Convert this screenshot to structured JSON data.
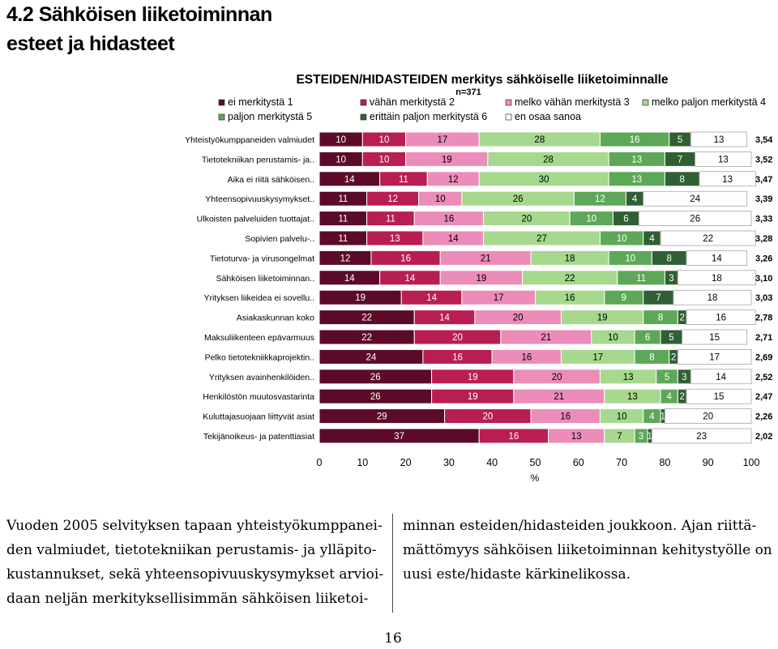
{
  "section_heading": {
    "line1": "4.2 Sähköisen liiketoiminnan",
    "line2": "esteet ja hidasteet"
  },
  "chart_data": {
    "type": "bar",
    "stacked": true,
    "orientation": "horizontal",
    "title": "ESTEIDEN/HIDASTEIDEN merkitys sähköiselle liiketoiminnalle",
    "subtitle": "n=371",
    "xlabel": "%",
    "xlim": [
      0,
      100
    ],
    "xticks": [
      0,
      10,
      20,
      30,
      40,
      50,
      60,
      70,
      80,
      90,
      100
    ],
    "legend_position": "top",
    "categories": [
      "Yhteistyökumppaneiden valmiudet",
      "Tietotekniikan perustamis- ja..",
      "Aika ei riitä sähköisen..",
      "Yhteensopivuuskysymykset..",
      "Ulkoisten palveluiden tuottajat..",
      "Sopivien palvelu-..",
      "Tietoturva- ja virusongelmat",
      "Sähköisen liiketoiminnan..",
      "Yrityksen liikeidea ei sovellu..",
      "Asiakaskunnan koko",
      "Maksuliikenteen epävarmuus",
      "Pelko tietotekniikkaprojektin..",
      "Yrityksen avainhenkilöiden..",
      "Henkilöstön muutosvastarinta",
      "Kuluttajasuojaan liittyvät asiat",
      "Tekijänoikeus- ja patenttiasiat"
    ],
    "series": [
      {
        "name": "ei merkitystä 1",
        "color": "#5c0a2a",
        "values": [
          10,
          10,
          14,
          11,
          11,
          11,
          12,
          14,
          19,
          22,
          22,
          24,
          26,
          26,
          29,
          37
        ]
      },
      {
        "name": "vähän merkitystä 2",
        "color": "#b81e54",
        "values": [
          10,
          10,
          11,
          12,
          11,
          13,
          16,
          14,
          14,
          14,
          20,
          16,
          19,
          19,
          20,
          16
        ]
      },
      {
        "name": "melko vähän merkitystä 3",
        "color": "#ec8cb9",
        "values": [
          17,
          19,
          12,
          10,
          16,
          14,
          21,
          19,
          17,
          20,
          21,
          16,
          20,
          21,
          16,
          13
        ]
      },
      {
        "name": "melko paljon merkitystä 4",
        "color": "#a6d88e",
        "values": [
          28,
          28,
          30,
          26,
          20,
          27,
          18,
          22,
          16,
          19,
          10,
          17,
          13,
          13,
          10,
          7
        ]
      },
      {
        "name": "paljon merkitystä 5",
        "color": "#5da858",
        "values": [
          16,
          13,
          13,
          12,
          10,
          10,
          10,
          11,
          9,
          8,
          6,
          8,
          5,
          4,
          4,
          3
        ]
      },
      {
        "name": "erittäin paljon merkitystä 6",
        "color": "#305f34",
        "values": [
          5,
          7,
          8,
          4,
          6,
          4,
          8,
          3,
          7,
          2,
          5,
          2,
          3,
          2,
          1,
          1
        ]
      },
      {
        "name": "en osaa sanoa",
        "color": "#ffffff",
        "values": [
          13,
          13,
          13,
          24,
          26,
          22,
          14,
          18,
          18,
          16,
          15,
          17,
          14,
          15,
          20,
          23
        ]
      }
    ],
    "averages": [
      "3,54",
      "3,52",
      "3,47",
      "3,39",
      "3,33",
      "3,28",
      "3,26",
      "3,10",
      "3,03",
      "2,78",
      "2,71",
      "2,69",
      "2,52",
      "2,47",
      "2,26",
      "2,02"
    ]
  },
  "body_text": {
    "left_lines": [
      "Vuoden 2005 selvityksen tapaan yhteistyökumppanei-",
      "den valmiudet, tietotekniikan perustamis- ja ylläpito-",
      "kustannukset, sekä yhteensopivuuskysymykset arvioi-",
      "daan neljän merkityksellisimmän sähköisen liiketoi-"
    ],
    "right_lines": [
      "minnan esteiden/hidasteiden joukkoon. Ajan riittä-",
      "mättömyys sähköisen liiketoiminnan kehitystyölle on",
      "uusi este/hidaste kärkinelikossa."
    ]
  },
  "page_number": "16"
}
